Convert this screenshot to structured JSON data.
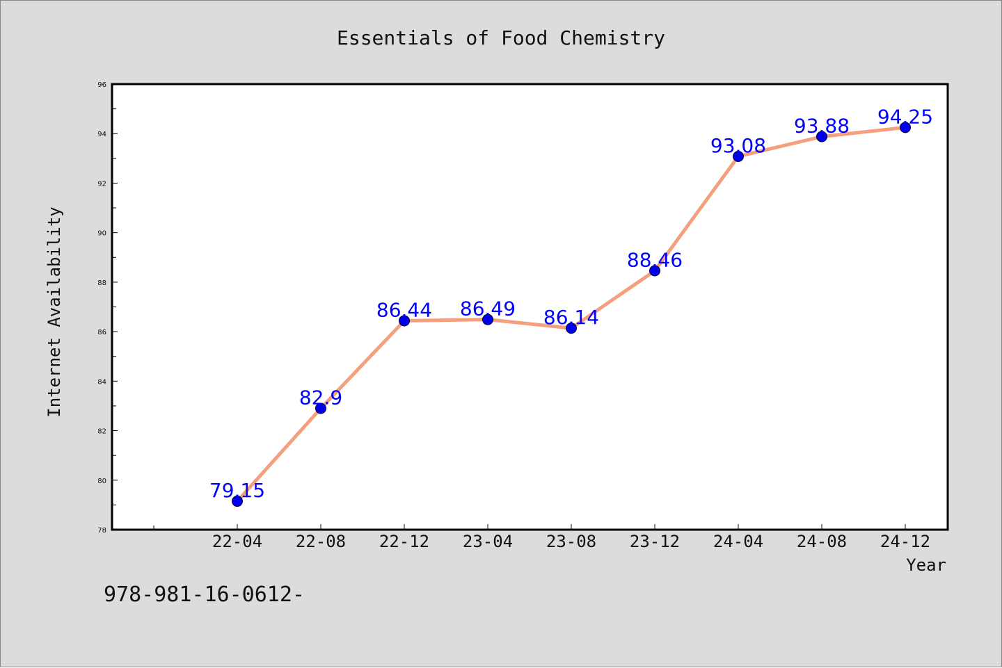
{
  "chart_data": {
    "type": "line",
    "title": "Essentials of Food Chemistry",
    "xlabel": "Year",
    "ylabel": "Internet Availability",
    "categories": [
      "22-04",
      "22-08",
      "22-12",
      "23-04",
      "23-08",
      "23-12",
      "24-04",
      "24-08",
      "24-12"
    ],
    "series": [
      {
        "values": [
          79.15,
          82.9,
          86.44,
          86.49,
          86.14,
          88.46,
          93.08,
          93.88,
          94.25
        ],
        "data_labels": [
          "79.15",
          "82.9",
          "86.44",
          "86.49",
          "86.14",
          "88.46",
          "93.08",
          "93.88",
          "94.25"
        ]
      }
    ],
    "ylim": [
      78,
      96
    ],
    "yticks": [
      78,
      80,
      82,
      84,
      86,
      88,
      90,
      92,
      94,
      96
    ],
    "grid": false,
    "legend": "none"
  },
  "footer_text": "978-981-16-0612-",
  "colors": {
    "background": "#dcdcdc",
    "plot_area": "#ffffff",
    "line": "#f4a07e",
    "marker": "#0000ee",
    "data_label": "#0000ff",
    "text": "#111111"
  }
}
